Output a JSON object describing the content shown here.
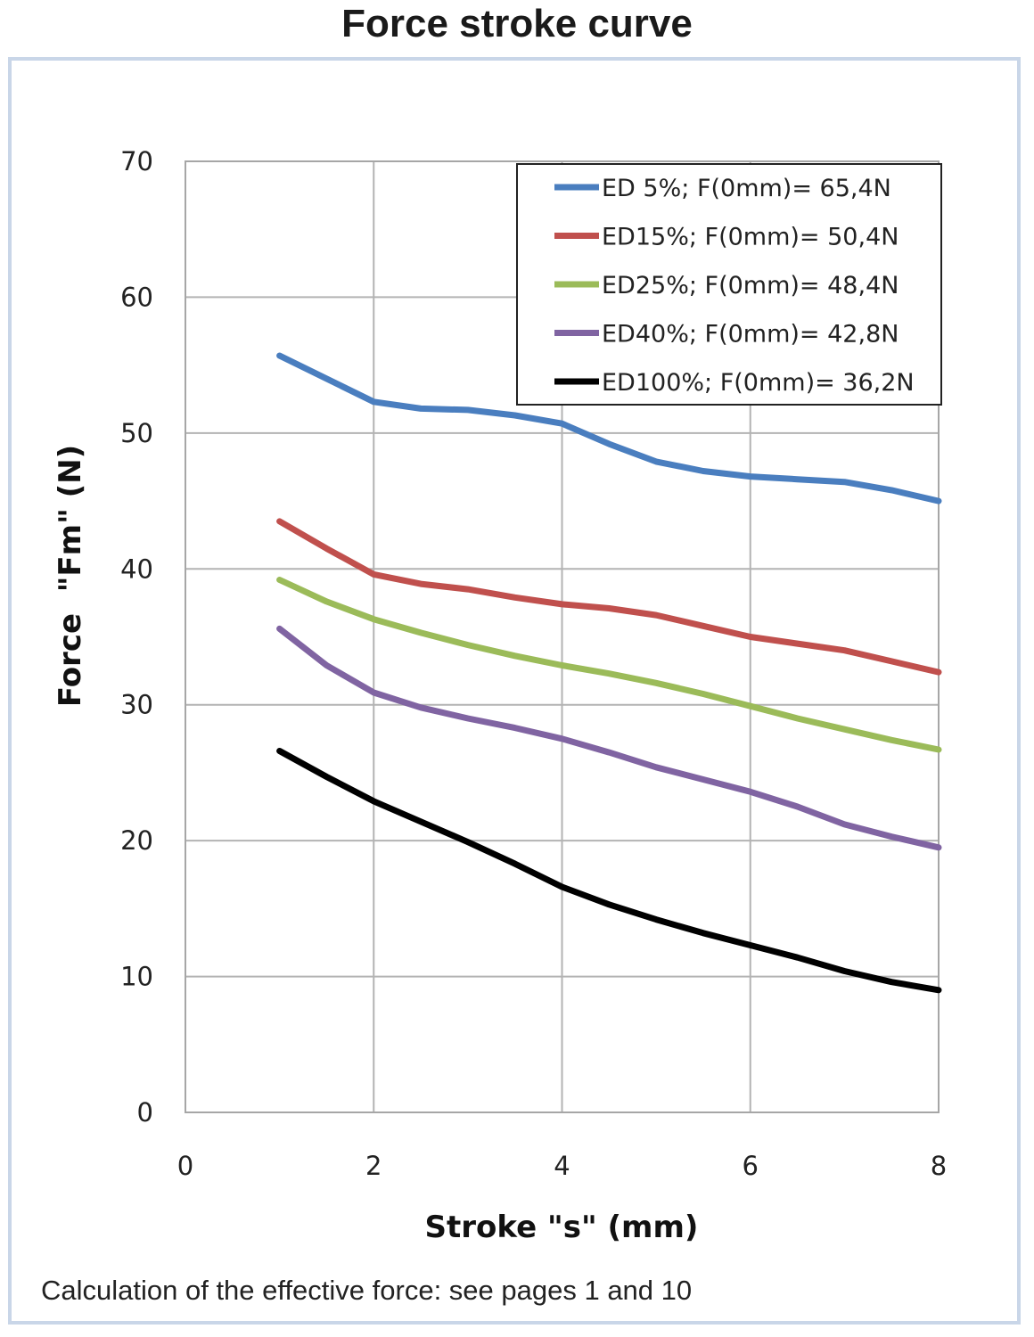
{
  "page": {
    "title": "Force stroke curve",
    "footnote": "Calculation of the effective force: see pages 1 and 10"
  },
  "chart_data": {
    "type": "line",
    "title": "Force stroke curve",
    "xlabel": "Stroke \"s\" (mm)",
    "ylabel": "Force  \"Fm\" (N)",
    "xlim": [
      0,
      8
    ],
    "ylim": [
      0,
      70
    ],
    "x_ticks": [
      0,
      2,
      4,
      6,
      8
    ],
    "y_ticks": [
      0,
      10,
      20,
      30,
      40,
      50,
      60,
      70
    ],
    "grid": true,
    "legend_position": "top-right",
    "series": [
      {
        "name": "ED 5%; F(0mm)= 65,4N",
        "color": "#4a7ebf",
        "x": [
          1,
          1.5,
          2,
          2.5,
          3,
          3.5,
          4,
          4.5,
          5,
          5.5,
          6,
          6.5,
          7,
          7.5,
          8
        ],
        "y": [
          55.7,
          54.0,
          52.3,
          51.8,
          51.7,
          51.3,
          50.7,
          49.2,
          47.9,
          47.2,
          46.8,
          46.6,
          46.4,
          45.8,
          45.0
        ]
      },
      {
        "name": "ED15%; F(0mm)= 50,4N",
        "color": "#c0504d",
        "x": [
          1,
          1.5,
          2,
          2.5,
          3,
          3.5,
          4,
          4.5,
          5,
          5.5,
          6,
          6.5,
          7,
          7.5,
          8
        ],
        "y": [
          43.5,
          41.5,
          39.6,
          38.9,
          38.5,
          37.9,
          37.4,
          37.1,
          36.6,
          35.8,
          35.0,
          34.5,
          34.0,
          33.2,
          32.4
        ]
      },
      {
        "name": "ED25%; F(0mm)= 48,4N",
        "color": "#9bbb59",
        "x": [
          1,
          1.5,
          2,
          2.5,
          3,
          3.5,
          4,
          4.5,
          5,
          5.5,
          6,
          6.5,
          7,
          7.5,
          8
        ],
        "y": [
          39.2,
          37.6,
          36.3,
          35.3,
          34.4,
          33.6,
          32.9,
          32.3,
          31.6,
          30.8,
          29.9,
          29.0,
          28.2,
          27.4,
          26.7
        ]
      },
      {
        "name": "ED40%; F(0mm)= 42,8N",
        "color": "#8064a2",
        "x": [
          1,
          1.5,
          2,
          2.5,
          3,
          3.5,
          4,
          4.5,
          5,
          5.5,
          6,
          6.5,
          7,
          7.5,
          8
        ],
        "y": [
          35.6,
          32.9,
          30.9,
          29.8,
          29.0,
          28.3,
          27.5,
          26.5,
          25.4,
          24.5,
          23.6,
          22.5,
          21.2,
          20.3,
          19.5
        ]
      },
      {
        "name": "ED100%; F(0mm)= 36,2N",
        "color": "#000000",
        "x": [
          1,
          1.5,
          2,
          2.5,
          3,
          3.5,
          4,
          4.5,
          5,
          5.5,
          6,
          6.5,
          7,
          7.5,
          8
        ],
        "y": [
          26.6,
          24.7,
          22.9,
          21.4,
          19.9,
          18.3,
          16.6,
          15.3,
          14.2,
          13.2,
          12.3,
          11.4,
          10.4,
          9.6,
          9.0
        ]
      }
    ]
  }
}
